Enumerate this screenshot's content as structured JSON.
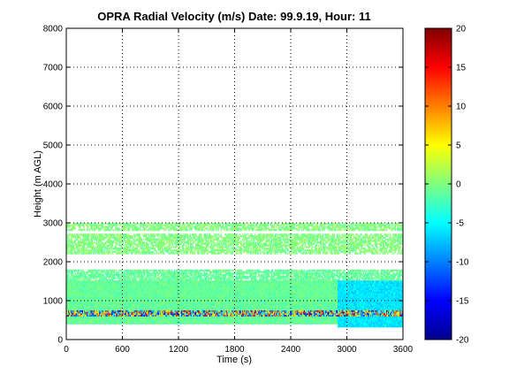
{
  "chart_data": {
    "type": "heatmap",
    "title": "OPRA Radial Velocity (m/s)  Date: 99.9.19, Hour: 11",
    "xlabel": "Time (s)",
    "ylabel": "Height (m AGL)",
    "xlim": [
      0,
      3600
    ],
    "ylim": [
      0,
      8000
    ],
    "xticks": [
      0,
      600,
      1200,
      1800,
      2400,
      3000,
      3600
    ],
    "yticks": [
      0,
      1000,
      2000,
      3000,
      4000,
      5000,
      6000,
      7000,
      8000
    ],
    "grid": true,
    "colorbar": {
      "colormap": "jet",
      "range": [
        -20,
        20
      ],
      "ticks": [
        -20,
        -15,
        -10,
        -5,
        0,
        5,
        10,
        15,
        20
      ]
    },
    "bands": [
      {
        "height_from": 2800,
        "height_to": 3000,
        "time_from": 0,
        "time_to": 3600,
        "typical_velocity": 0
      },
      {
        "height_from": 2200,
        "height_to": 2700,
        "time_from": 0,
        "time_to": 3600,
        "typical_velocity": 0
      },
      {
        "height_from": 400,
        "height_to": 1800,
        "time_from": 0,
        "time_to": 3600,
        "typical_velocity": -1
      },
      {
        "height_from": 300,
        "height_to": 1500,
        "time_from": 2900,
        "time_to": 3600,
        "typical_velocity": -6
      },
      {
        "height_from": 600,
        "height_to": 750,
        "time_from": 0,
        "time_to": 3600,
        "typical_velocity": 0
      }
    ]
  }
}
